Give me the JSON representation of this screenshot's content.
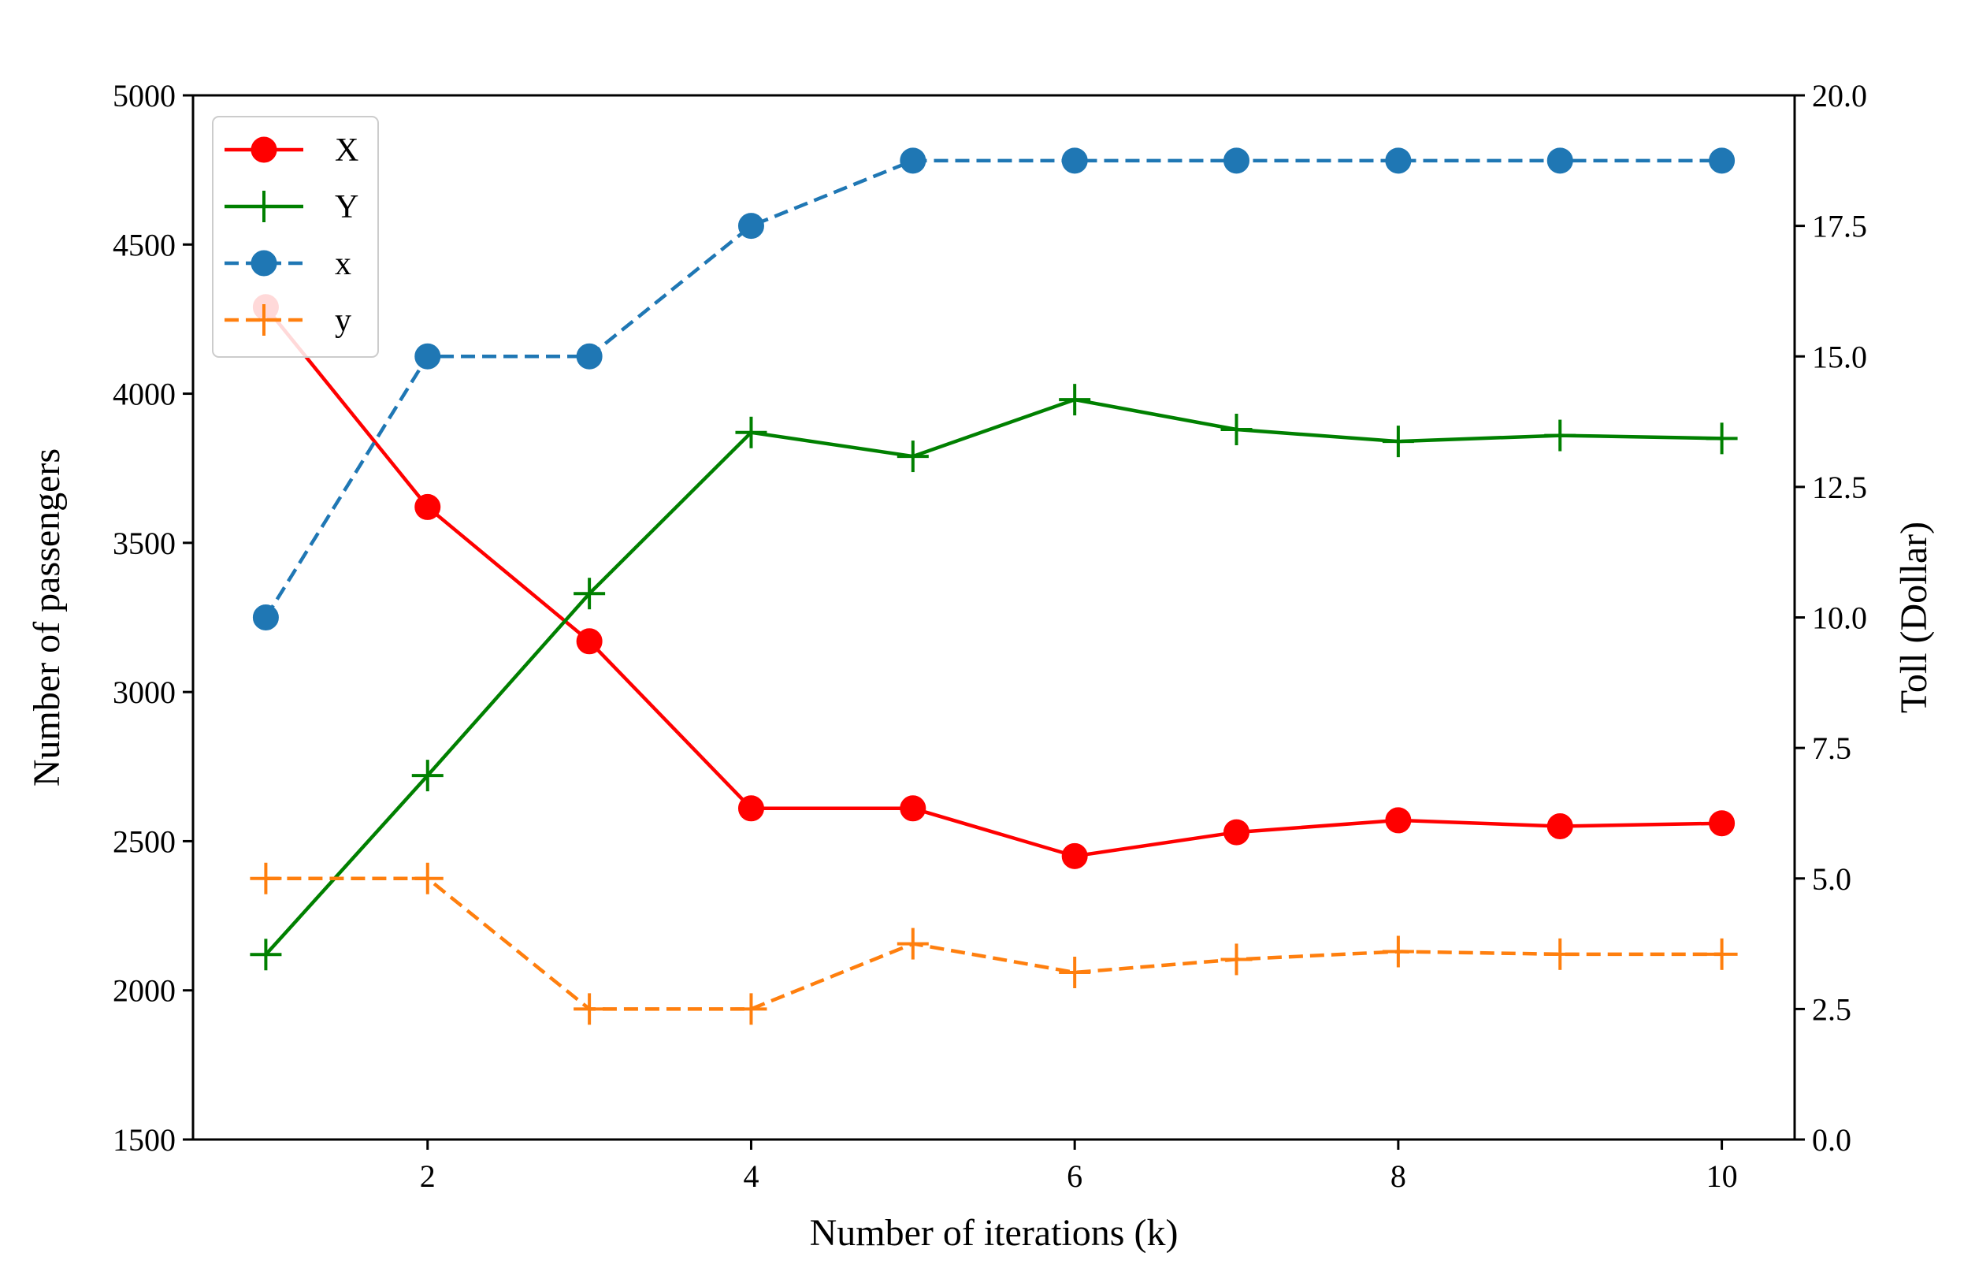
{
  "chart_data": {
    "type": "line",
    "xlabel": "Number of iterations (k)",
    "ylabel_left": "Number of passengers",
    "ylabel_right": "Toll (Dollar)",
    "x_ticks": [
      2,
      4,
      6,
      8,
      10
    ],
    "x_tick_labels": [
      "2",
      "4",
      "6",
      "8",
      "10"
    ],
    "y_left_ticks": [
      1500,
      2000,
      2500,
      3000,
      3500,
      4000,
      4500,
      5000
    ],
    "y_left_tick_labels": [
      "1500",
      "2000",
      "2500",
      "3000",
      "3500",
      "4000",
      "4500",
      "5000"
    ],
    "y_right_ticks": [
      0,
      2.5,
      5,
      7.5,
      10,
      12.5,
      15,
      17.5,
      20
    ],
    "y_right_tick_labels": [
      "0.0",
      "2.5",
      "5.0",
      "7.5",
      "10.0",
      "12.5",
      "15.0",
      "17.5",
      "20.0"
    ],
    "xlim": [
      0.55,
      10.45
    ],
    "ylim_left": [
      1500,
      5000
    ],
    "ylim_right": [
      0,
      20
    ],
    "grid": false,
    "legend_position": "upper-left",
    "x": [
      1,
      2,
      3,
      4,
      5,
      6,
      7,
      8,
      9,
      10
    ],
    "series": [
      {
        "name": "X",
        "axis": "left",
        "color": "#ff0000",
        "marker": "circle",
        "dash": "solid",
        "values": [
          4290,
          3620,
          3170,
          2610,
          2610,
          2450,
          2530,
          2570,
          2550,
          2560
        ]
      },
      {
        "name": "Y",
        "axis": "left",
        "color": "#008000",
        "marker": "plus",
        "dash": "solid",
        "values": [
          2120,
          2720,
          3330,
          3870,
          3790,
          3980,
          3880,
          3840,
          3860,
          3850
        ]
      },
      {
        "name": "x",
        "axis": "right",
        "color": "#1f77b4",
        "marker": "circle",
        "dash": "dashed",
        "values": [
          10.0,
          15.0,
          15.0,
          17.5,
          18.75,
          18.75,
          18.75,
          18.75,
          18.75,
          18.75
        ]
      },
      {
        "name": "y",
        "axis": "right",
        "color": "#ff7f0e",
        "marker": "plus",
        "dash": "dashed",
        "values": [
          5.0,
          5.0,
          2.5,
          2.5,
          3.75,
          3.2,
          3.45,
          3.6,
          3.55,
          3.55
        ]
      }
    ]
  }
}
